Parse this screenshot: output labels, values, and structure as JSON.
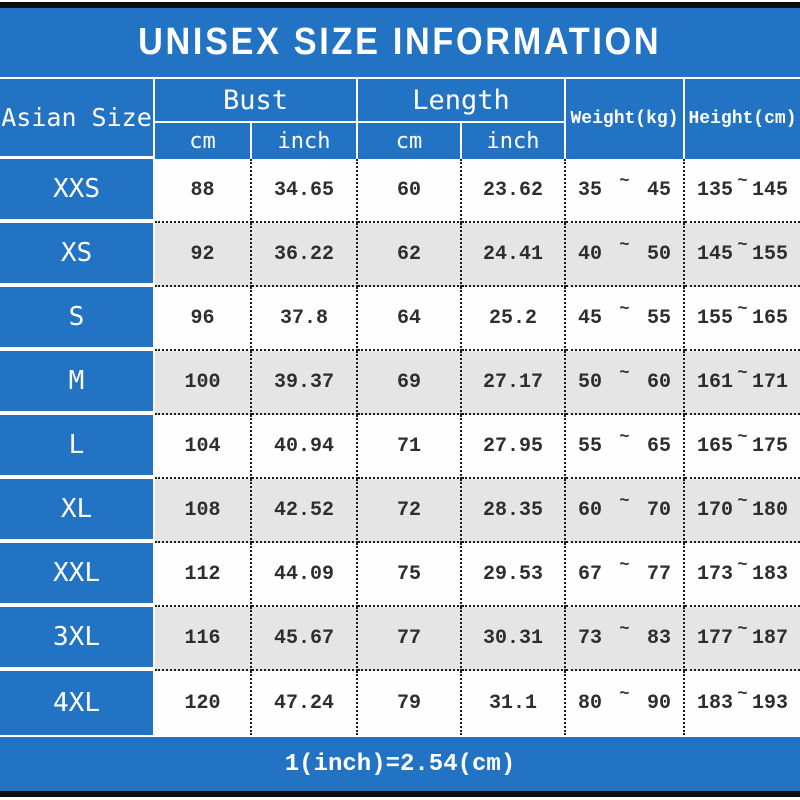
{
  "title": "UNISEX SIZE INFORMATION",
  "footer_note": "1(inch)=2.54(cm)",
  "colors": {
    "accent_blue": "#2273c4",
    "row_alt_gray": "#e6e5e5",
    "row_white": "#fefefe",
    "border_black": "#1b1b1b",
    "header_text": "#ffffff"
  },
  "table": {
    "corner_header": "Asian Size",
    "groups": [
      {
        "label": "Bust",
        "sub": [
          "cm",
          "inch"
        ]
      },
      {
        "label": "Length",
        "sub": [
          "cm",
          "inch"
        ]
      }
    ],
    "weight_header": "Weight(kg)",
    "height_header": "Height(cm)",
    "range_separator": "~",
    "rows": [
      {
        "size": "XXS",
        "bust_cm": "88",
        "bust_inch": "34.65",
        "length_cm": "60",
        "length_inch": "23.62",
        "weight_min": "35",
        "weight_max": "45",
        "height_min": "135",
        "height_max": "145"
      },
      {
        "size": "XS",
        "bust_cm": "92",
        "bust_inch": "36.22",
        "length_cm": "62",
        "length_inch": "24.41",
        "weight_min": "40",
        "weight_max": "50",
        "height_min": "145",
        "height_max": "155"
      },
      {
        "size": "S",
        "bust_cm": "96",
        "bust_inch": "37.8",
        "length_cm": "64",
        "length_inch": "25.2",
        "weight_min": "45",
        "weight_max": "55",
        "height_min": "155",
        "height_max": "165"
      },
      {
        "size": "M",
        "bust_cm": "100",
        "bust_inch": "39.37",
        "length_cm": "69",
        "length_inch": "27.17",
        "weight_min": "50",
        "weight_max": "60",
        "height_min": "161",
        "height_max": "171"
      },
      {
        "size": "L",
        "bust_cm": "104",
        "bust_inch": "40.94",
        "length_cm": "71",
        "length_inch": "27.95",
        "weight_min": "55",
        "weight_max": "65",
        "height_min": "165",
        "height_max": "175"
      },
      {
        "size": "XL",
        "bust_cm": "108",
        "bust_inch": "42.52",
        "length_cm": "72",
        "length_inch": "28.35",
        "weight_min": "60",
        "weight_max": "70",
        "height_min": "170",
        "height_max": "180"
      },
      {
        "size": "XXL",
        "bust_cm": "112",
        "bust_inch": "44.09",
        "length_cm": "75",
        "length_inch": "29.53",
        "weight_min": "67",
        "weight_max": "77",
        "height_min": "173",
        "height_max": "183"
      },
      {
        "size": "3XL",
        "bust_cm": "116",
        "bust_inch": "45.67",
        "length_cm": "77",
        "length_inch": "30.31",
        "weight_min": "73",
        "weight_max": "83",
        "height_min": "177",
        "height_max": "187"
      },
      {
        "size": "4XL",
        "bust_cm": "120",
        "bust_inch": "47.24",
        "length_cm": "79",
        "length_inch": "31.1",
        "weight_min": "80",
        "weight_max": "90",
        "height_min": "183",
        "height_max": "193"
      }
    ]
  },
  "chart_data": {
    "type": "table",
    "title": "UNISEX SIZE INFORMATION",
    "columns": [
      "Asian Size",
      "Bust cm",
      "Bust inch",
      "Length cm",
      "Length inch",
      "Weight(kg)",
      "Height(cm)"
    ],
    "rows": [
      [
        "XXS",
        88,
        34.65,
        60,
        23.62,
        "35~45",
        "135~145"
      ],
      [
        "XS",
        92,
        36.22,
        62,
        24.41,
        "40~50",
        "145~155"
      ],
      [
        "S",
        96,
        37.8,
        64,
        25.2,
        "45~55",
        "155~165"
      ],
      [
        "M",
        100,
        39.37,
        69,
        27.17,
        "50~60",
        "161~171"
      ],
      [
        "L",
        104,
        40.94,
        71,
        27.95,
        "55~65",
        "165~175"
      ],
      [
        "XL",
        108,
        42.52,
        72,
        28.35,
        "60~70",
        "170~180"
      ],
      [
        "XXL",
        112,
        44.09,
        75,
        29.53,
        "67~77",
        "173~183"
      ],
      [
        "3XL",
        116,
        45.67,
        77,
        30.31,
        "73~83",
        "177~187"
      ],
      [
        "4XL",
        120,
        47.24,
        79,
        31.1,
        "80~90",
        "183~193"
      ]
    ],
    "note": "1(inch)=2.54(cm)"
  }
}
